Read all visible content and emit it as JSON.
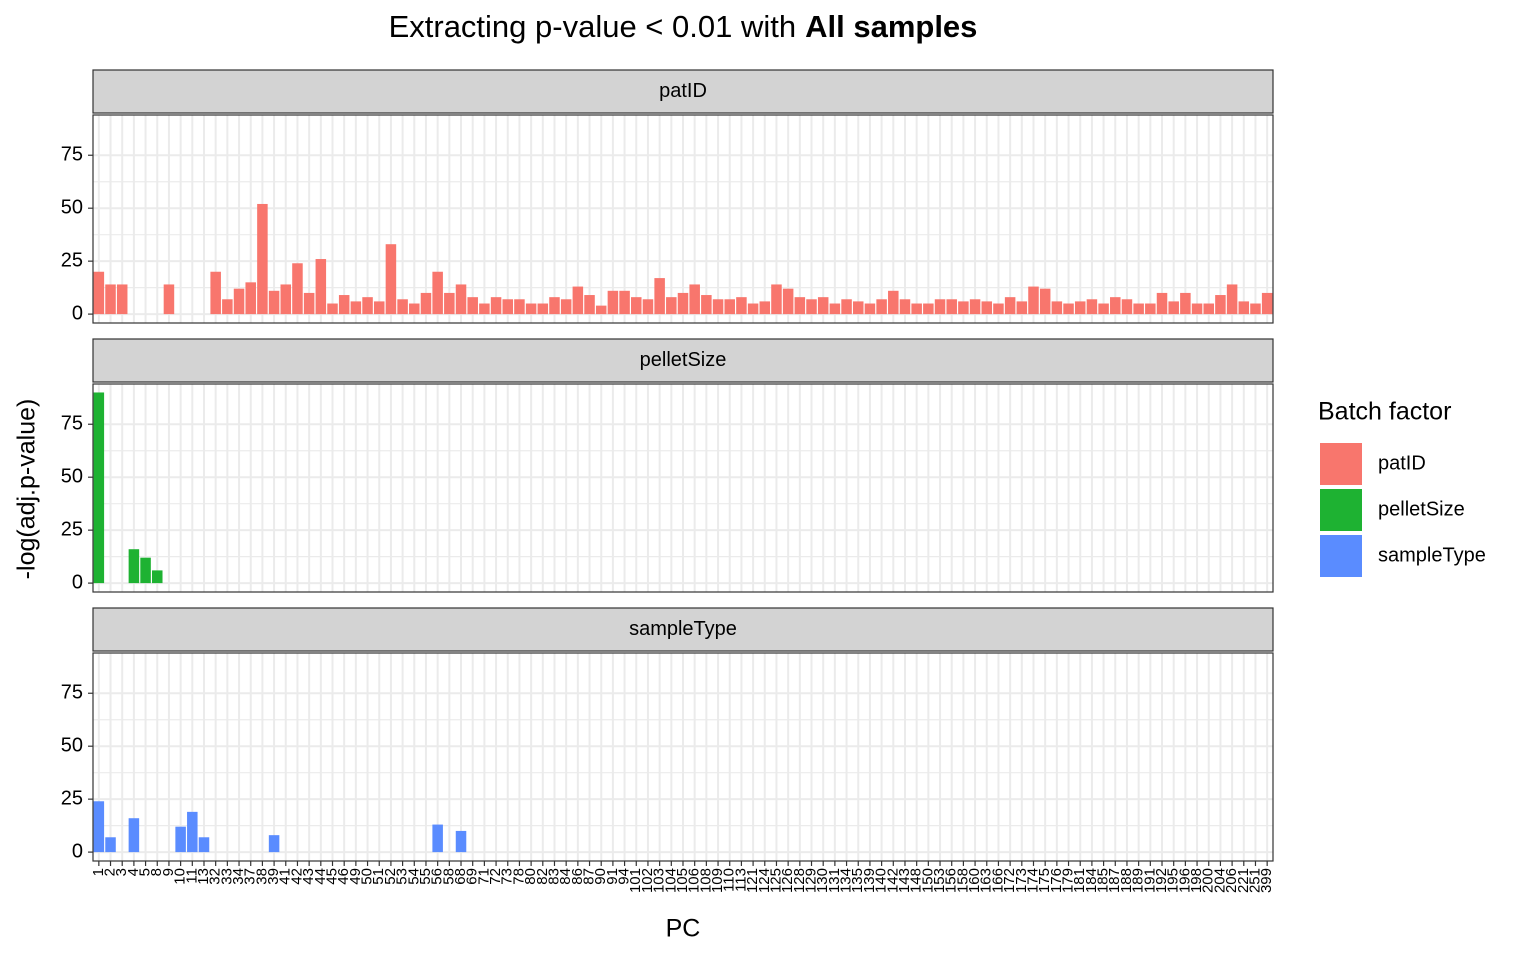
{
  "chart_data": {
    "type": "bar",
    "title": [
      "Extracting p-value < 0.01 with",
      "All samples"
    ],
    "xlabel": "PC",
    "ylabel": "-log(adj.p-value)",
    "legend_title": "Batch factor",
    "categories": [
      "1",
      "2",
      "3",
      "4",
      "5",
      "8",
      "9",
      "10",
      "11",
      "13",
      "32",
      "33",
      "34",
      "37",
      "38",
      "39",
      "41",
      "42",
      "43",
      "44",
      "45",
      "46",
      "49",
      "50",
      "51",
      "52",
      "53",
      "54",
      "55",
      "56",
      "58",
      "68",
      "69",
      "71",
      "72",
      "73",
      "78",
      "80",
      "82",
      "83",
      "84",
      "86",
      "87",
      "90",
      "91",
      "94",
      "101",
      "102",
      "103",
      "104",
      "105",
      "106",
      "108",
      "109",
      "110",
      "113",
      "121",
      "124",
      "125",
      "126",
      "128",
      "129",
      "130",
      "131",
      "134",
      "135",
      "139",
      "140",
      "142",
      "143",
      "148",
      "150",
      "153",
      "156",
      "158",
      "160",
      "163",
      "166",
      "172",
      "173",
      "174",
      "175",
      "176",
      "179",
      "181",
      "184",
      "185",
      "187",
      "188",
      "189",
      "191",
      "192",
      "195",
      "196",
      "198",
      "200",
      "204",
      "206",
      "221",
      "251",
      "399"
    ],
    "ylim": [
      -4.2,
      94
    ],
    "yticks": [
      0,
      25,
      50,
      75
    ],
    "grid": true,
    "series": [
      {
        "name": "patID",
        "color": "#f8766d",
        "values": [
          20,
          14,
          14,
          null,
          null,
          null,
          14,
          null,
          null,
          null,
          20,
          7,
          12,
          15,
          52,
          11,
          14,
          24,
          10,
          26,
          5,
          9,
          6,
          8,
          6,
          33,
          7,
          5,
          10,
          20,
          10,
          14,
          8,
          5,
          8,
          7,
          7,
          5,
          5,
          8,
          7,
          13,
          9,
          4,
          11,
          11,
          8,
          7,
          17,
          8,
          10,
          14,
          9,
          7,
          7,
          8,
          5,
          6,
          14,
          12,
          8,
          7,
          8,
          5,
          7,
          6,
          5,
          7,
          11,
          7,
          5,
          5,
          7,
          7,
          6,
          7,
          6,
          5,
          8,
          6,
          13,
          12,
          6,
          5,
          6,
          7,
          5,
          8,
          7,
          5,
          5,
          10,
          6,
          10,
          5,
          5,
          9,
          14,
          6,
          5,
          10
        ]
      },
      {
        "name": "pelletSize",
        "color": "#1eb232",
        "values": [
          90,
          null,
          null,
          16,
          12,
          6,
          null,
          null,
          null,
          null,
          null,
          null,
          null,
          null,
          null,
          null,
          null,
          null,
          null,
          null,
          null,
          null,
          null,
          null,
          null,
          null,
          null,
          null,
          null,
          null,
          null,
          null,
          null,
          null,
          null,
          null,
          null,
          null,
          null,
          null,
          null,
          null,
          null,
          null,
          null,
          null,
          null,
          null,
          null,
          null,
          null,
          null,
          null,
          null,
          null,
          null,
          null,
          null,
          null,
          null,
          null,
          null,
          null,
          null,
          null,
          null,
          null,
          null,
          null,
          null,
          null,
          null,
          null,
          null,
          null,
          null,
          null,
          null,
          null,
          null,
          null,
          null,
          null,
          null,
          null,
          null,
          null,
          null,
          null,
          null,
          null,
          null,
          null,
          null,
          null,
          null,
          null,
          null,
          null,
          null,
          null
        ]
      },
      {
        "name": "sampleType",
        "color": "#5a8cff",
        "values": [
          24,
          7,
          null,
          16,
          null,
          null,
          null,
          12,
          19,
          7,
          null,
          null,
          null,
          null,
          null,
          8,
          null,
          null,
          null,
          null,
          null,
          null,
          null,
          null,
          null,
          null,
          null,
          null,
          null,
          13,
          null,
          10,
          null,
          null,
          null,
          null,
          null,
          null,
          null,
          null,
          null,
          null,
          null,
          null,
          null,
          null,
          null,
          null,
          null,
          null,
          null,
          null,
          null,
          null,
          null,
          null,
          null,
          null,
          null,
          null,
          null,
          null,
          null,
          null,
          null,
          null,
          null,
          null,
          null,
          null,
          null,
          null,
          null,
          null,
          null,
          null,
          null,
          null,
          null,
          null,
          null,
          null,
          null,
          null,
          null,
          null,
          null,
          null,
          null,
          null,
          null,
          null,
          null,
          null,
          null,
          null,
          null,
          null,
          null,
          null,
          null
        ]
      }
    ]
  }
}
